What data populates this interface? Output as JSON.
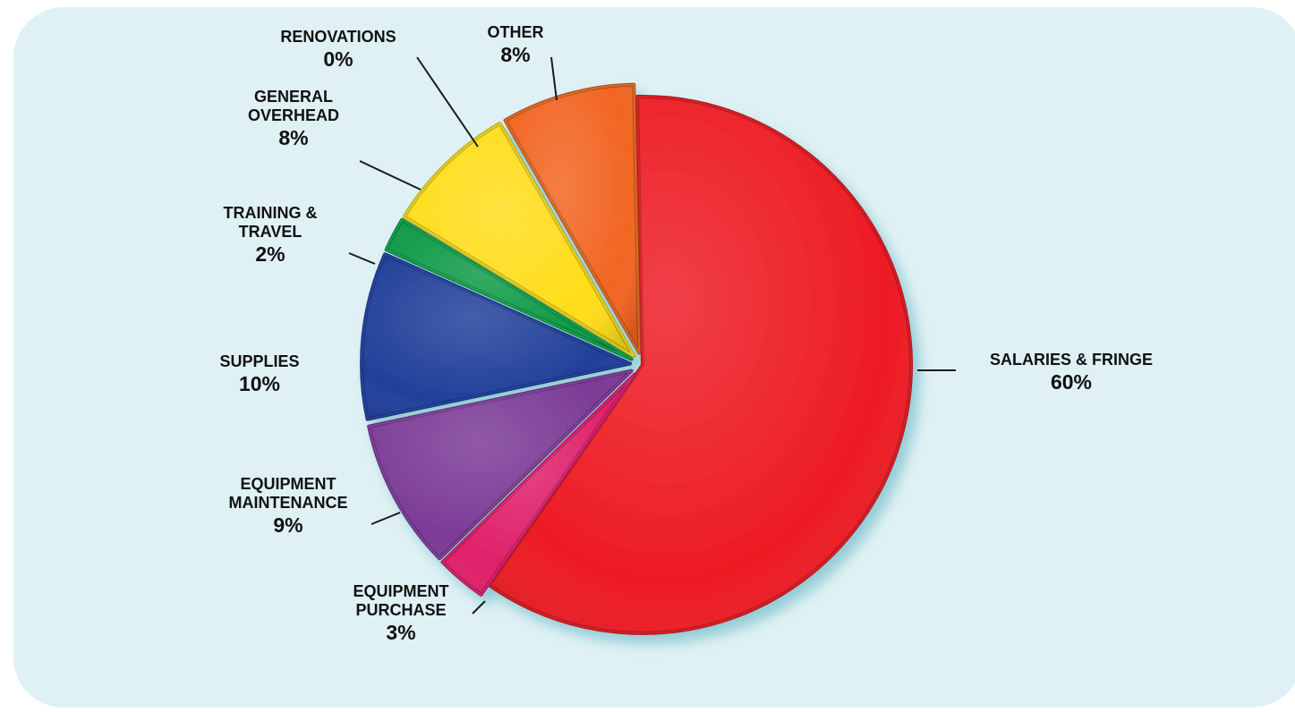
{
  "chart_data": {
    "type": "pie",
    "title": "",
    "slices": [
      {
        "label": "SALARIES & FRINGE",
        "value": 60,
        "value_label": "60%",
        "color": "#ed1c24"
      },
      {
        "label": "EQUIPMENT PURCHASE",
        "value": 3,
        "value_label": "3%",
        "color": "#e0206a"
      },
      {
        "label": "EQUIPMENT MAINTENANCE",
        "value": 9,
        "value_label": "9%",
        "color": "#7b3b96"
      },
      {
        "label": "SUPPLIES",
        "value": 10,
        "value_label": "10%",
        "color": "#21409a"
      },
      {
        "label": "TRAINING & TRAVEL",
        "value": 2,
        "value_label": "2%",
        "color": "#0f9a48"
      },
      {
        "label": "GENERAL OVERHEAD",
        "value": 8,
        "value_label": "8%",
        "color": "#ffdd1a"
      },
      {
        "label": "RENOVATIONS",
        "value": 0,
        "value_label": "0%",
        "color": "#d9d9d9"
      },
      {
        "label": "OTHER",
        "value": 8,
        "value_label": "8%",
        "color": "#f26522"
      }
    ],
    "legend": "none",
    "labels": "outside with leader lines",
    "background_color": "#dff1f4"
  }
}
